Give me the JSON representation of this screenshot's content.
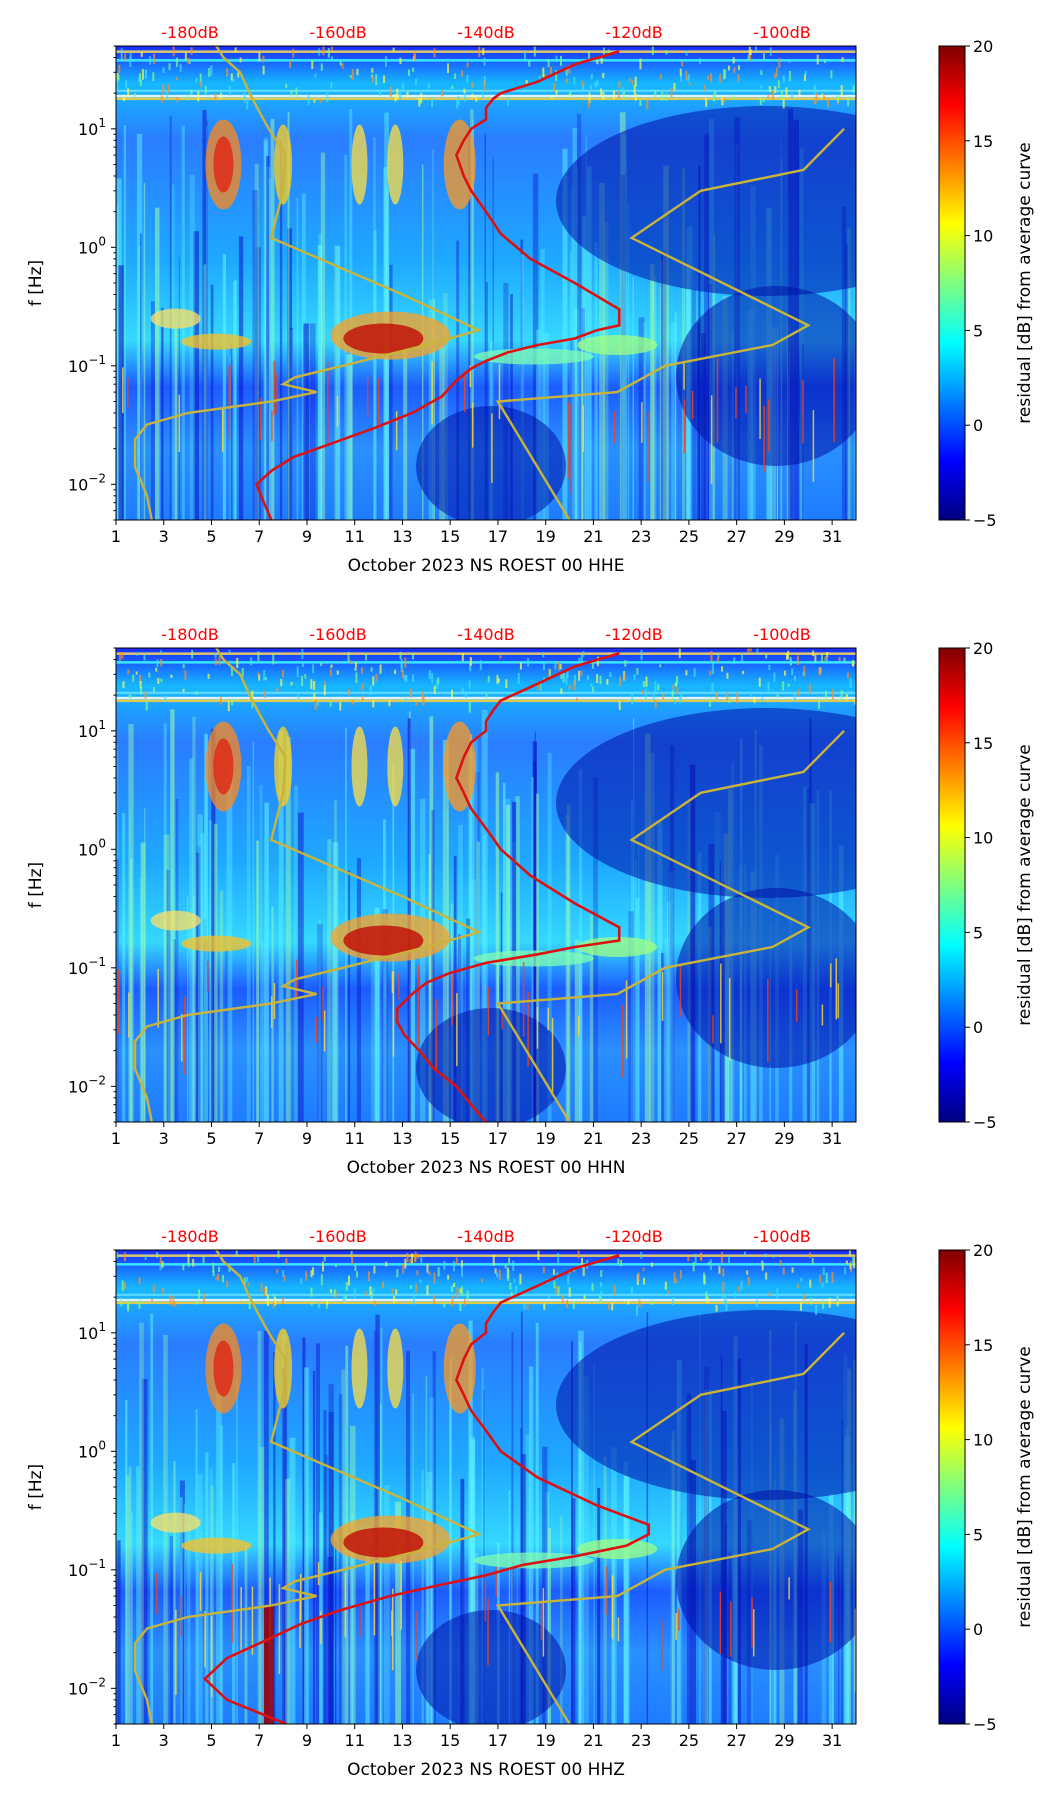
{
  "colors": {
    "top_scale": "#ff0000",
    "average_curve": "#dd1111",
    "noise_model": "#c8b43a",
    "colormap": [
      "#00007f",
      "#0000ff",
      "#007fff",
      "#00ffff",
      "#7fff7f",
      "#ffff00",
      "#ff7f00",
      "#ff0000",
      "#7f0000"
    ]
  },
  "chart_data": [
    {
      "type": "heatmap",
      "xlabel": "October 2023 NS ROEST 00 HHE",
      "ylabel": "f [Hz]",
      "colorbar_label": "residual [dB] from average curve",
      "yscale": "log",
      "xlim": [
        1,
        32
      ],
      "ylim": [
        0.005,
        50
      ],
      "clim": [
        -5,
        20
      ],
      "x_ticks": [
        "1",
        "3",
        "5",
        "7",
        "9",
        "11",
        "13",
        "15",
        "17",
        "19",
        "21",
        "23",
        "25",
        "27",
        "29",
        "31"
      ],
      "y_ticks": [
        {
          "value": 0.01,
          "base": "10",
          "exp": "−2"
        },
        {
          "value": 0.1,
          "base": "10",
          "exp": "−1"
        },
        {
          "value": 1,
          "base": "10",
          "exp": "0"
        },
        {
          "value": 10,
          "base": "10",
          "exp": "1"
        }
      ],
      "colorbar_ticks": [
        "−5",
        "0",
        "5",
        "10",
        "15",
        "20"
      ],
      "top_scale": {
        "labels": [
          "-180dB",
          "-160dB",
          "-140dB",
          "-120dB",
          "-100dB"
        ],
        "values": [
          -180,
          -160,
          -140,
          -120,
          -100
        ],
        "range": [
          -190,
          -90
        ]
      },
      "average_curve": {
        "name": "average curve",
        "dB": [
          -169,
          -170,
          -171,
          -169,
          -166,
          -161,
          -155,
          -150,
          -146,
          -144,
          -142,
          -140,
          -137,
          -133,
          -128,
          -125,
          -122,
          -122,
          -128,
          -134,
          -138,
          -140,
          -142,
          -143,
          -144,
          -143,
          -142,
          -140,
          -140,
          -139,
          -138,
          -133,
          -128,
          -122
        ],
        "f": [
          0.005,
          0.007,
          0.01,
          0.013,
          0.017,
          0.022,
          0.03,
          0.04,
          0.055,
          0.075,
          0.095,
          0.11,
          0.13,
          0.15,
          0.17,
          0.2,
          0.22,
          0.3,
          0.5,
          0.8,
          1.3,
          2,
          3,
          4,
          6,
          8,
          10,
          12,
          15,
          18,
          20,
          25,
          35,
          45
        ]
      },
      "noise_model": {
        "name": "noise model",
        "x": [
          2.5,
          2.3,
          1.8,
          1.8,
          2.3,
          4,
          7.5,
          9.4,
          8,
          8.5,
          10.5,
          14,
          16.2,
          13,
          7.5,
          8,
          8.1,
          7.4,
          7,
          6.6,
          6.2,
          5.5,
          5.2
        ],
        "f": [
          0.005,
          0.008,
          0.014,
          0.024,
          0.032,
          0.04,
          0.05,
          0.06,
          0.07,
          0.08,
          0.1,
          0.15,
          0.2,
          0.4,
          1.2,
          3,
          6,
          10,
          14,
          20,
          30,
          40,
          50
        ]
      },
      "noise_model_high": {
        "name": "noise model",
        "x": [
          20,
          17,
          22,
          24,
          28.5,
          30,
          22.6,
          25.5,
          29.8,
          31.5
        ],
        "f": [
          0.005,
          0.05,
          0.06,
          0.1,
          0.15,
          0.22,
          1.2,
          3,
          4.5,
          10
        ]
      }
    },
    {
      "type": "heatmap",
      "xlabel": "October 2023 NS ROEST 00 HHN",
      "ylabel": "f [Hz]",
      "colorbar_label": "residual [dB] from average curve",
      "yscale": "log",
      "xlim": [
        1,
        32
      ],
      "ylim": [
        0.005,
        50
      ],
      "clim": [
        -5,
        20
      ],
      "x_ticks": [
        "1",
        "3",
        "5",
        "7",
        "9",
        "11",
        "13",
        "15",
        "17",
        "19",
        "21",
        "23",
        "25",
        "27",
        "29",
        "31"
      ],
      "y_ticks": [
        {
          "value": 0.01,
          "base": "10",
          "exp": "−2"
        },
        {
          "value": 0.1,
          "base": "10",
          "exp": "−1"
        },
        {
          "value": 1,
          "base": "10",
          "exp": "0"
        },
        {
          "value": 10,
          "base": "10",
          "exp": "1"
        }
      ],
      "colorbar_ticks": [
        "−5",
        "0",
        "5",
        "10",
        "15",
        "20"
      ],
      "top_scale": {
        "labels": [
          "-180dB",
          "-160dB",
          "-140dB",
          "-120dB",
          "-100dB"
        ],
        "values": [
          -180,
          -160,
          -140,
          -120,
          -100
        ],
        "range": [
          -190,
          -90
        ]
      },
      "average_curve": {
        "name": "average curve",
        "dB": [
          -140,
          -142,
          -144,
          -147,
          -149,
          -151,
          -152,
          -152,
          -150,
          -148,
          -145,
          -140,
          -133,
          -128,
          -122,
          -122,
          -128,
          -134,
          -138,
          -140,
          -142,
          -143,
          -144,
          -143,
          -142,
          -140,
          -140,
          -139,
          -138,
          -133,
          -128,
          -122
        ],
        "f": [
          0.005,
          0.007,
          0.01,
          0.014,
          0.02,
          0.027,
          0.035,
          0.045,
          0.06,
          0.075,
          0.09,
          0.11,
          0.13,
          0.15,
          0.17,
          0.22,
          0.35,
          0.6,
          1,
          1.5,
          2.2,
          3,
          4,
          6,
          8,
          10,
          12,
          15,
          18,
          25,
          35,
          45
        ]
      },
      "noise_model": {
        "name": "noise model",
        "x": [
          2.5,
          2.3,
          1.8,
          1.8,
          2.3,
          4,
          7.5,
          9.4,
          8,
          8.5,
          10.5,
          14,
          16.2,
          13,
          7.5,
          8,
          8.1,
          7.4,
          7,
          6.6,
          6.2,
          5.5,
          5.2
        ],
        "f": [
          0.005,
          0.008,
          0.014,
          0.024,
          0.032,
          0.04,
          0.05,
          0.06,
          0.07,
          0.08,
          0.1,
          0.15,
          0.2,
          0.4,
          1.2,
          3,
          6,
          10,
          14,
          20,
          30,
          40,
          50
        ]
      },
      "noise_model_high": {
        "name": "noise model",
        "x": [
          20,
          17,
          22,
          24,
          28.5,
          30,
          22.6,
          25.5,
          29.8,
          31.5
        ],
        "f": [
          0.005,
          0.05,
          0.06,
          0.1,
          0.15,
          0.22,
          1.2,
          3,
          4.5,
          10
        ]
      }
    },
    {
      "type": "heatmap",
      "xlabel": "October 2023 NS ROEST 00 HHZ",
      "ylabel": "f [Hz]",
      "colorbar_label": "residual [dB] from average curve",
      "yscale": "log",
      "xlim": [
        1,
        32
      ],
      "ylim": [
        0.005,
        50
      ],
      "clim": [
        -5,
        20
      ],
      "x_ticks": [
        "1",
        "3",
        "5",
        "7",
        "9",
        "11",
        "13",
        "15",
        "17",
        "19",
        "21",
        "23",
        "25",
        "27",
        "29",
        "31"
      ],
      "y_ticks": [
        {
          "value": 0.01,
          "base": "10",
          "exp": "−2"
        },
        {
          "value": 0.1,
          "base": "10",
          "exp": "−1"
        },
        {
          "value": 1,
          "base": "10",
          "exp": "0"
        },
        {
          "value": 10,
          "base": "10",
          "exp": "1"
        }
      ],
      "colorbar_ticks": [
        "−5",
        "0",
        "5",
        "10",
        "15",
        "20"
      ],
      "top_scale": {
        "labels": [
          "-180dB",
          "-160dB",
          "-140dB",
          "-120dB",
          "-100dB"
        ],
        "values": [
          -180,
          -160,
          -140,
          -120,
          -100
        ],
        "range": [
          -190,
          -90
        ]
      },
      "average_curve": {
        "name": "average curve",
        "dB": [
          -167,
          -175,
          -178,
          -175,
          -170,
          -165,
          -160,
          -153,
          -146,
          -140,
          -135,
          -128,
          -121,
          -118,
          -118,
          -125,
          -133,
          -138,
          -140,
          -142,
          -143,
          -144,
          -143,
          -142,
          -140,
          -140,
          -139,
          -138,
          -133,
          -128,
          -122
        ],
        "f": [
          0.005,
          0.008,
          0.012,
          0.018,
          0.025,
          0.035,
          0.045,
          0.06,
          0.075,
          0.09,
          0.11,
          0.13,
          0.16,
          0.2,
          0.24,
          0.35,
          0.6,
          1,
          1.5,
          2.2,
          3,
          4,
          6,
          8,
          10,
          12,
          15,
          18,
          25,
          35,
          45
        ]
      },
      "noise_model": {
        "name": "noise model",
        "x": [
          2.5,
          2.3,
          1.8,
          1.8,
          2.3,
          4,
          7.5,
          9.4,
          8,
          8.5,
          10.5,
          14,
          16.2,
          13,
          7.5,
          8,
          8.1,
          7.4,
          7,
          6.6,
          6.2,
          5.5,
          5.2
        ],
        "f": [
          0.005,
          0.008,
          0.014,
          0.024,
          0.032,
          0.04,
          0.05,
          0.06,
          0.07,
          0.08,
          0.1,
          0.15,
          0.2,
          0.4,
          1.2,
          3,
          6,
          10,
          14,
          20,
          30,
          40,
          50
        ]
      },
      "noise_model_high": {
        "name": "noise model",
        "x": [
          20,
          17,
          22,
          24,
          28.5,
          30,
          22.6,
          25.5,
          29.8,
          31.5
        ],
        "f": [
          0.005,
          0.05,
          0.06,
          0.1,
          0.15,
          0.22,
          1.2,
          3,
          4.5,
          10
        ]
      }
    }
  ]
}
